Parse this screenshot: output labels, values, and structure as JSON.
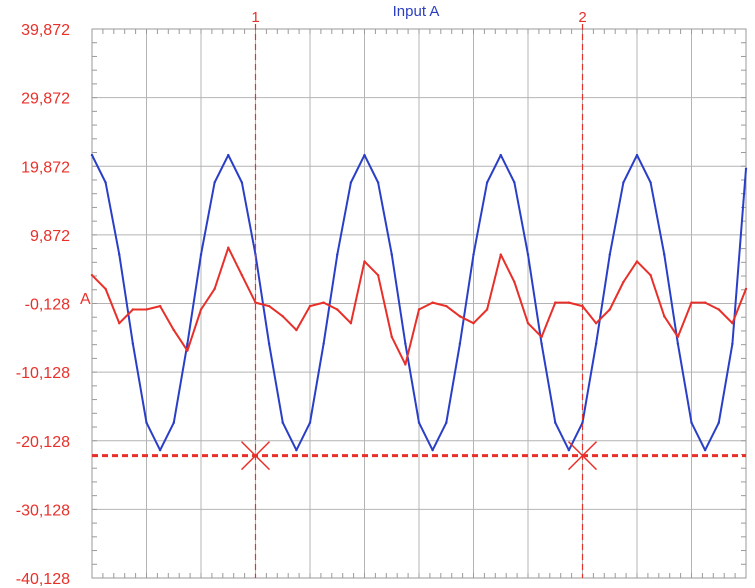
{
  "chart_data": {
    "type": "line",
    "title": "Input A",
    "y_tick_labels": [
      "39,872",
      "29,872",
      "19,872",
      "9,872",
      "-0,128",
      "-10,128",
      "-20,128",
      "-30,128",
      "-40,128"
    ],
    "ylim": [
      -40.128,
      39.872
    ],
    "x_divisions": 12,
    "grid": true,
    "reference_marker": "A",
    "x": [
      0.0,
      0.25,
      0.5,
      0.75,
      1.0,
      1.25,
      1.5,
      1.75,
      2.0,
      2.25,
      2.5,
      2.75,
      3.0,
      3.25,
      3.5,
      3.75,
      4.0,
      4.25,
      4.5,
      4.75,
      5.0,
      5.25,
      5.5,
      5.75,
      6.0,
      6.25,
      6.5,
      6.75,
      7.0,
      7.25,
      7.5,
      7.75,
      8.0,
      8.25,
      8.5,
      8.75,
      9.0,
      9.25,
      9.5,
      9.75,
      10.0,
      10.25,
      10.5,
      10.75,
      11.0,
      11.25,
      11.5,
      11.75,
      12.0
    ],
    "series": [
      {
        "color": "#2a3fc8",
        "values": [
          21.5,
          17.5,
          7,
          -6,
          -17.5,
          -21.5,
          -17.5,
          -6,
          7,
          17.5,
          21.5,
          17.5,
          7,
          -6,
          -17.5,
          -21.5,
          -17.5,
          -6,
          7,
          17.5,
          21.5,
          17.5,
          7,
          -6,
          -17.5,
          -21.5,
          -17.5,
          -6,
          7,
          17.5,
          21.5,
          17.5,
          7,
          -6,
          -17.5,
          -21.5,
          -17.5,
          -6,
          7,
          17.5,
          21.5,
          17.5,
          7,
          -6,
          -17.5,
          -21.5,
          -17.5,
          -6,
          19.5
        ]
      },
      {
        "color": "#e8302a",
        "values": [
          4,
          2,
          -3,
          -1,
          -1,
          -0.5,
          -4,
          -7,
          -1,
          2,
          8,
          4,
          0,
          -0.5,
          -2,
          -4,
          -0.5,
          0,
          -1,
          -3,
          6,
          4,
          -5,
          -9,
          -1,
          0,
          -0.5,
          -2,
          -3,
          -1,
          7,
          3,
          -3,
          -5,
          0,
          0,
          -0.5,
          -3,
          -1,
          3,
          6,
          4,
          -2,
          -5,
          0,
          0,
          -1,
          -3,
          2
        ]
      }
    ],
    "cursors": [
      {
        "label": "1",
        "x": 3.0
      },
      {
        "label": "2",
        "x": 9.0
      }
    ],
    "horizontal_cursor_y": -22.3
  }
}
